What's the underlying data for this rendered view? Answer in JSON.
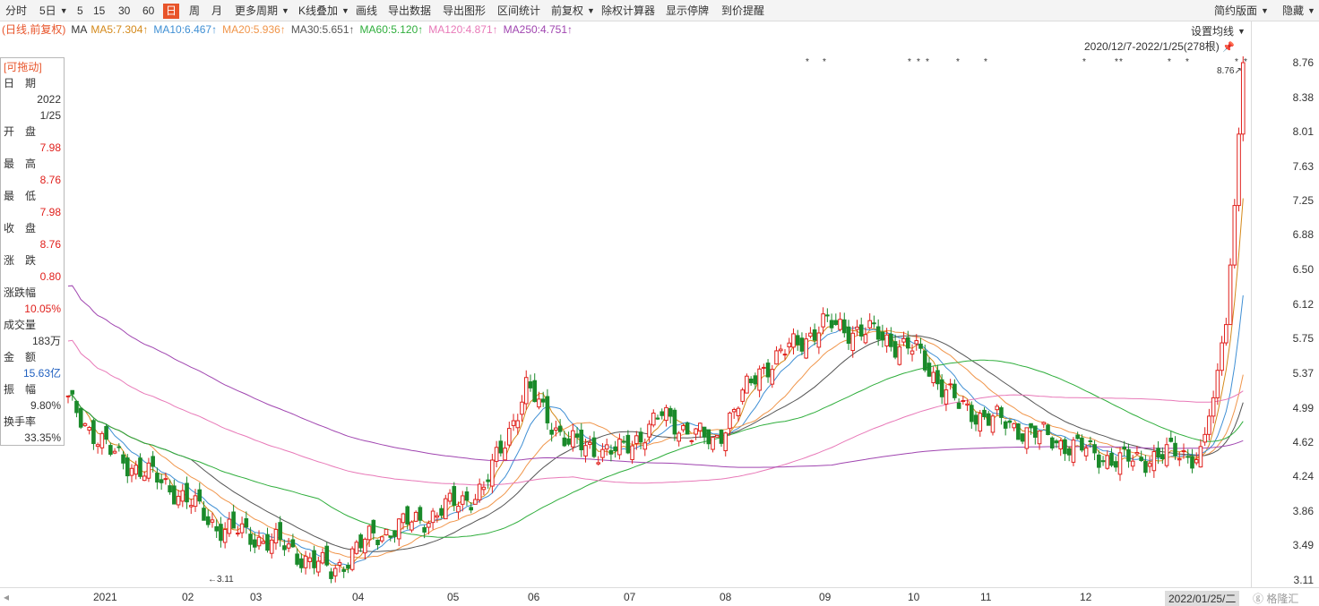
{
  "toolbar": {
    "items": [
      "分时",
      "5日",
      "5",
      "15",
      "30",
      "60",
      "日",
      "周",
      "月",
      "更多周期",
      "K线叠加",
      "画线",
      "导出数据",
      "导出图形",
      "区间统计",
      "前复权",
      "除权计算器",
      "显示停牌",
      "到价提醒"
    ],
    "right_items": [
      "简约版面",
      "隐藏"
    ],
    "active": "日"
  },
  "ma_legend": {
    "prefix": "(日线,前复权)",
    "ma_label": "MA",
    "items": [
      {
        "label": "MA5:7.304↑",
        "color": "#d4891a"
      },
      {
        "label": "MA10:6.467↑",
        "color": "#3f8fd4"
      },
      {
        "label": "MA20:5.936↑",
        "color": "#f0954a"
      },
      {
        "label": "MA30:5.651↑",
        "color": "#555555"
      },
      {
        "label": "MA60:5.120↑",
        "color": "#2fae3c"
      },
      {
        "label": "MA120:4.871↑",
        "color": "#e879b8"
      },
      {
        "label": "MA250:4.751↑",
        "color": "#a045b0"
      }
    ],
    "prefix_color": "#e8542a"
  },
  "settings_label": "设置均线",
  "range_label": "2020/12/7-2022/1/25(278根)",
  "info_panel": {
    "header": "[可拖动]",
    "rows": [
      {
        "label": "日　期",
        "value": "2022",
        "value2": "1/25",
        "color": "#333333"
      },
      {
        "label": "开　盘",
        "value": "7.98",
        "color": "#e0201c"
      },
      {
        "label": "最　高",
        "value": "8.76",
        "color": "#e0201c"
      },
      {
        "label": "最　低",
        "value": "7.98",
        "color": "#e0201c"
      },
      {
        "label": "收　盘",
        "value": "8.76",
        "color": "#e0201c"
      },
      {
        "label": "涨　跌",
        "value": "0.80",
        "color": "#e0201c"
      },
      {
        "label": "涨跌幅",
        "value": "10.05%",
        "color": "#e0201c"
      },
      {
        "label": "成交量",
        "value": "183万",
        "color": "#333333"
      },
      {
        "label": "金　额",
        "value": "15.63亿",
        "color": "#2060c0"
      },
      {
        "label": "振　幅",
        "value": "9.80%",
        "color": "#333333"
      },
      {
        "label": "换手率",
        "value": "33.35%",
        "color": "#333333"
      }
    ]
  },
  "y_axis_labels": [
    "8.76",
    "8.38",
    "8.01",
    "7.63",
    "7.25",
    "6.88",
    "6.50",
    "6.12",
    "5.75",
    "5.37",
    "4.99",
    "4.62",
    "4.24",
    "3.86",
    "3.49",
    "3.11"
  ],
  "x_axis_labels": [
    "2021",
    "02",
    "03",
    "04",
    "05",
    "06",
    "07",
    "08",
    "09",
    "10",
    "11",
    "12"
  ],
  "x_axis_current": "2022/01/25/二",
  "annotations": {
    "high": "8.76",
    "low": "3.11"
  },
  "watermark": "格隆汇",
  "chart_data": {
    "type": "candlestick",
    "title": "",
    "y_range": [
      3.11,
      8.76
    ],
    "x_range": [
      "2020/12/7",
      "2022/1/25"
    ],
    "bars": 278,
    "latest": {
      "date": "2022/1/25",
      "open": 7.98,
      "high": 8.76,
      "low": 7.98,
      "close": 8.76
    },
    "ma": {
      "MA5": 7.304,
      "MA10": 6.467,
      "MA20": 5.936,
      "MA30": 5.651,
      "MA60": 5.12,
      "MA120": 4.871,
      "MA250": 4.751
    },
    "colors": {
      "up": "#e0201c",
      "down": "#1a8a2a"
    }
  }
}
